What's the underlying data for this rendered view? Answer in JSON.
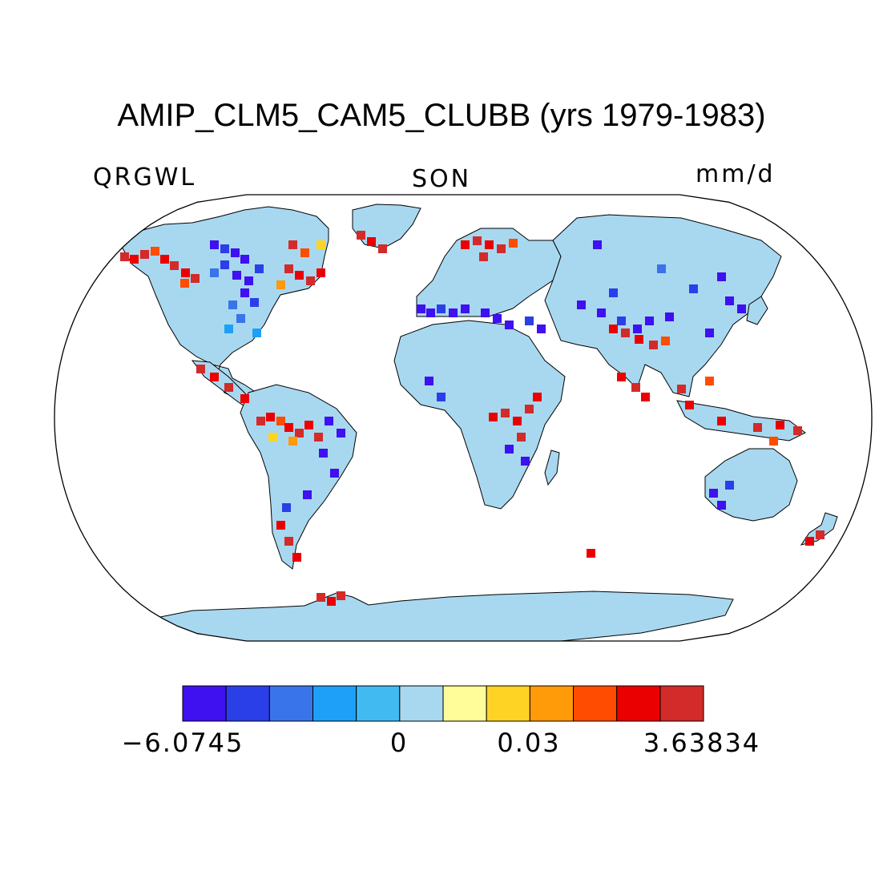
{
  "title": "AMIP_CLM5_CAM5_CLUBB (yrs 1979-1983)",
  "variable": "QRGWL",
  "season": "SON",
  "units": "mm/d",
  "colorbar": {
    "colors": [
      "#3f10f0",
      "#2b3fe8",
      "#3a74ea",
      "#1ea0f8",
      "#41baf2",
      "#a8d8f0",
      "#fffc9a",
      "#ffd324",
      "#ff9a08",
      "#ff4c00",
      "#ea0000",
      "#d32a2a"
    ],
    "labels": [
      "−6.0745",
      "0",
      "0.03",
      "3.63834"
    ]
  },
  "map": {
    "projection": "robinson",
    "land_fill": "#a8d8f0",
    "ocean_fill": "#ffffff",
    "coastline_color": "#000000"
  }
}
